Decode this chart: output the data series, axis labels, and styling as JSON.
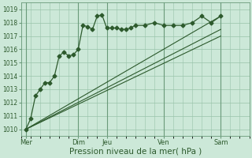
{
  "bg_color": "#cce8d8",
  "grid_color": "#99c4aa",
  "line_color": "#2d5a2d",
  "xlabel": "Pression niveau de la mer( hPa )",
  "xlabel_fontsize": 7.5,
  "ylim": [
    1009.5,
    1019.5
  ],
  "yticks": [
    1010,
    1011,
    1012,
    1013,
    1014,
    1015,
    1016,
    1017,
    1018,
    1019
  ],
  "xlim": [
    0,
    24
  ],
  "xtick_labels": [
    "Mer",
    "Dim",
    "Jeu",
    "Ven",
    "Sam"
  ],
  "xtick_positions": [
    0.5,
    6,
    9,
    15,
    21
  ],
  "day_vlines": [
    0.5,
    6,
    9,
    15,
    21
  ],
  "series_main": {
    "x": [
      0.5,
      1,
      1.5,
      2,
      2.5,
      3,
      3.5,
      4,
      4.5,
      5,
      5.5,
      6,
      6.5,
      7,
      7.5,
      8,
      8.5,
      9,
      9.5,
      10,
      10.5,
      11,
      11.5,
      12,
      13,
      14,
      15,
      16,
      17,
      18,
      19,
      20,
      21
    ],
    "y": [
      1010.0,
      1010.8,
      1012.5,
      1013.0,
      1013.5,
      1013.5,
      1014.0,
      1015.5,
      1015.8,
      1015.5,
      1015.6,
      1016.0,
      1017.8,
      1017.7,
      1017.5,
      1018.5,
      1018.6,
      1017.6,
      1017.6,
      1017.6,
      1017.5,
      1017.5,
      1017.6,
      1017.8,
      1017.8,
      1018.0,
      1017.8,
      1017.8,
      1017.8,
      1018.0,
      1018.5,
      1018.0,
      1018.5
    ],
    "marker": "D",
    "markersize": 2.5,
    "linewidth": 0.9
  },
  "series_trend1": {
    "x": [
      0.5,
      21
    ],
    "y": [
      1010.0,
      1018.5
    ],
    "linewidth": 0.8
  },
  "series_trend2": {
    "x": [
      0.5,
      21
    ],
    "y": [
      1010.0,
      1017.5
    ],
    "linewidth": 0.8
  },
  "series_trend3": {
    "x": [
      0.5,
      21
    ],
    "y": [
      1010.0,
      1017.0
    ],
    "linewidth": 0.8
  }
}
